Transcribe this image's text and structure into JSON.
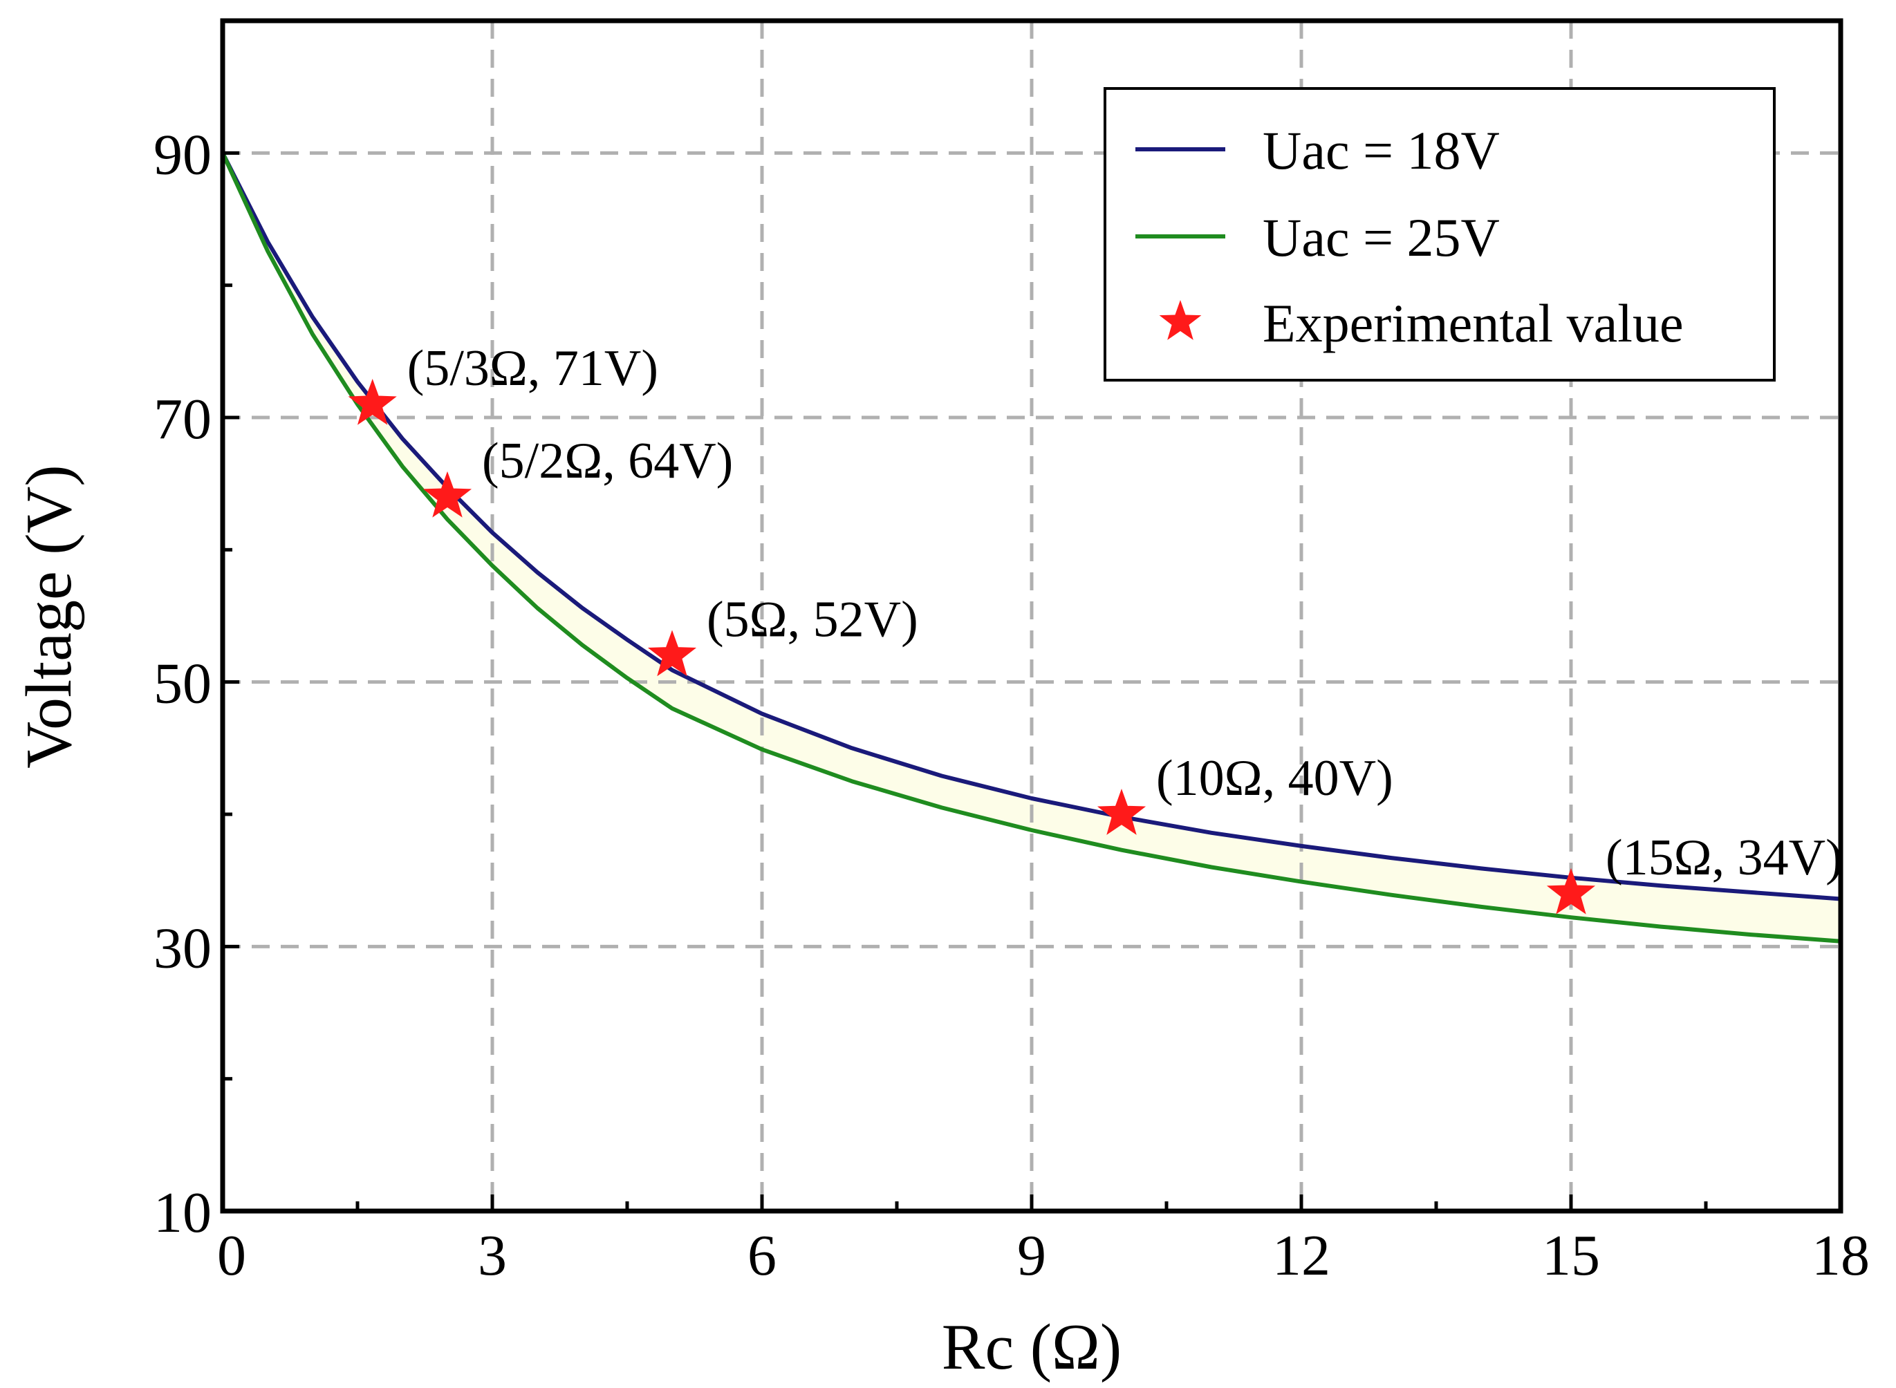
{
  "chart_data": {
    "type": "line",
    "xlabel": "Rc (Ω)",
    "ylabel": "Voltage (V)",
    "xlim": [
      0,
      18
    ],
    "ylim": [
      10,
      100
    ],
    "grid": true,
    "legend_position": "top-right",
    "x_ticks": [
      0,
      3,
      6,
      9,
      12,
      15,
      18
    ],
    "x_tick_labels": [
      "0",
      "3",
      "6",
      "9",
      "12",
      "15",
      "18"
    ],
    "y_ticks": [
      10,
      30,
      50,
      70,
      90
    ],
    "y_tick_labels": [
      "10",
      "30",
      "50",
      "70",
      "90"
    ],
    "x_minor_ticks": [
      1.5,
      4.5,
      7.5,
      10.5,
      13.5,
      16.5
    ],
    "y_minor_ticks": [
      20,
      40,
      60,
      80
    ],
    "colors": {
      "uac18": "#1a1a7a",
      "uac25": "#1f8c1f",
      "fill": "#fdfde8",
      "marker": "#ff1a1a"
    },
    "series": [
      {
        "name": "Uac = 18V",
        "color": "#1a1a7a",
        "x": [
          0,
          0.5,
          1,
          1.5,
          2,
          2.5,
          3,
          3.5,
          4,
          4.5,
          5,
          6,
          7,
          8,
          9,
          10,
          11,
          12,
          13,
          14,
          15,
          16,
          17,
          18
        ],
        "y": [
          90.0,
          83.3,
          77.6,
          72.7,
          68.4,
          64.7,
          61.3,
          58.3,
          55.6,
          53.2,
          50.9,
          47.6,
          45.0,
          42.9,
          41.2,
          39.8,
          38.6,
          37.6,
          36.7,
          35.9,
          35.2,
          34.6,
          34.1,
          33.6
        ]
      },
      {
        "name": "Uac = 25V",
        "color": "#1f8c1f",
        "x": [
          0,
          0.5,
          1,
          1.5,
          2,
          2.5,
          3,
          3.5,
          4,
          4.5,
          5,
          6,
          7,
          8,
          9,
          10,
          11,
          12,
          13,
          14,
          15,
          16,
          17,
          18
        ],
        "y": [
          90.0,
          82.6,
          76.3,
          71.0,
          66.3,
          62.3,
          58.8,
          55.6,
          52.8,
          50.3,
          48.0,
          44.9,
          42.5,
          40.5,
          38.8,
          37.3,
          36.0,
          34.9,
          33.9,
          33.0,
          32.2,
          31.5,
          30.9,
          30.4
        ]
      }
    ],
    "experimental": {
      "name": "Experimental value",
      "color": "#ff1a1a",
      "points": [
        {
          "x": 1.667,
          "y": 71,
          "label": "(5/3Ω, 71V)"
        },
        {
          "x": 2.5,
          "y": 64,
          "label": "(5/2Ω, 64V)"
        },
        {
          "x": 5,
          "y": 52,
          "label": "(5Ω, 52V)"
        },
        {
          "x": 10,
          "y": 40,
          "label": "(10Ω, 40V)"
        },
        {
          "x": 15,
          "y": 34,
          "label": "(15Ω, 34V)"
        }
      ]
    },
    "legend": [
      "Uac = 18V",
      "Uac = 25V",
      "Experimental value"
    ]
  }
}
